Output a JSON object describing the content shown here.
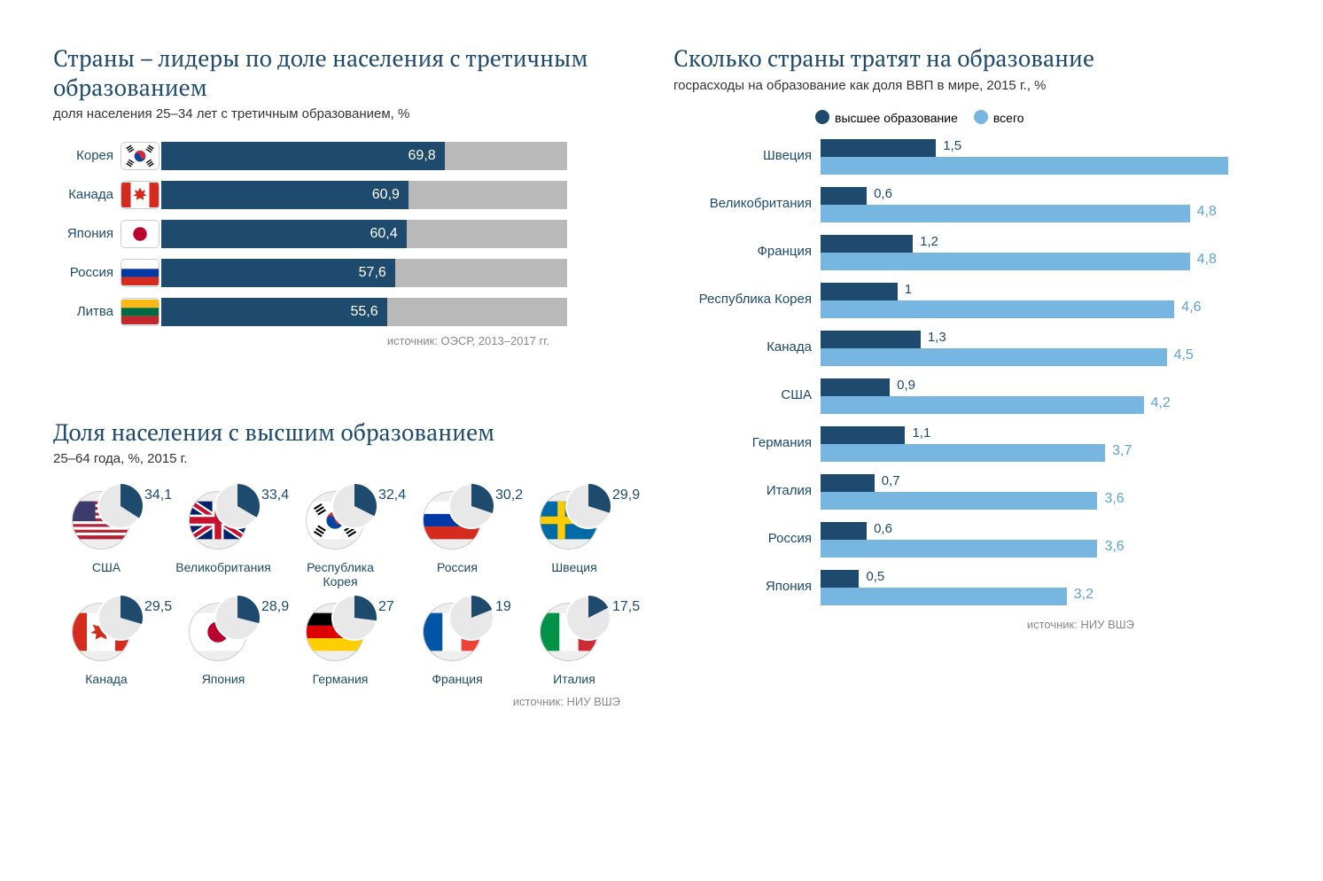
{
  "colors": {
    "title": "#1e4a6d",
    "bar_fill": "#1e4a6d",
    "bar_track": "#b9b9b9",
    "source": "#888888",
    "light_blue": "#76b6e0",
    "light_blue_text": "#5ba3d6"
  },
  "chart1": {
    "title": "Страны – лидеры по доле населения с третичным образованием",
    "subtitle": "доля населения 25–34 лет с третичным образованием, %",
    "max": 100,
    "rows": [
      {
        "label": "Корея",
        "flag": "kr",
        "value": 69.8,
        "disp": "69,8"
      },
      {
        "label": "Канада",
        "flag": "ca",
        "value": 60.9,
        "disp": "60,9"
      },
      {
        "label": "Япония",
        "flag": "jp",
        "value": 60.4,
        "disp": "60,4"
      },
      {
        "label": "Россия",
        "flag": "ru",
        "value": 57.6,
        "disp": "57,6"
      },
      {
        "label": "Литва",
        "flag": "lt",
        "value": 55.6,
        "disp": "55,6"
      }
    ],
    "source": "источник: ОЭСР, 2013–2017 гг."
  },
  "chart2": {
    "title": "Доля населения с высшим образованием",
    "subtitle": "25–64 года, %, 2015 г.",
    "items": [
      {
        "label": "США",
        "flag": "us",
        "value": 34.1,
        "disp": "34,1"
      },
      {
        "label": "Великобритания",
        "flag": "gb",
        "value": 33.4,
        "disp": "33,4"
      },
      {
        "label": "Республика\nКорея",
        "flag": "kr",
        "value": 32.4,
        "disp": "32,4"
      },
      {
        "label": "Россия",
        "flag": "ru",
        "value": 30.2,
        "disp": "30,2"
      },
      {
        "label": "Швеция",
        "flag": "se",
        "value": 29.9,
        "disp": "29,9"
      },
      {
        "label": "Канада",
        "flag": "ca",
        "value": 29.5,
        "disp": "29,5"
      },
      {
        "label": "Япония",
        "flag": "jp",
        "value": 28.9,
        "disp": "28,9"
      },
      {
        "label": "Германия",
        "flag": "de",
        "value": 27.0,
        "disp": "27"
      },
      {
        "label": "Франция",
        "flag": "fr",
        "value": 19.0,
        "disp": "19"
      },
      {
        "label": "Италия",
        "flag": "it",
        "value": 17.5,
        "disp": "17,5"
      }
    ],
    "source": "источник: НИУ ВШЭ"
  },
  "chart3": {
    "title": "Сколько страны тратят на образование",
    "subtitle": "госрасходы на образование как доля ВВП в мире, 2015 г., %",
    "legend_he": "высшее образование",
    "legend_total": "всего",
    "max": 5.3,
    "he_max": 5.3,
    "rows": [
      {
        "label": "Швеция",
        "he": 1.5,
        "he_disp": "1,5",
        "total": 5.3,
        "total_disp": ""
      },
      {
        "label": "Великобритания",
        "he": 0.6,
        "he_disp": "0,6",
        "total": 4.8,
        "total_disp": "4,8"
      },
      {
        "label": "Франция",
        "he": 1.2,
        "he_disp": "1,2",
        "total": 4.8,
        "total_disp": "4,8"
      },
      {
        "label": "Республика Корея",
        "he": 1.0,
        "he_disp": "1",
        "total": 4.6,
        "total_disp": "4,6"
      },
      {
        "label": "Канада",
        "he": 1.3,
        "he_disp": "1,3",
        "total": 4.5,
        "total_disp": "4,5"
      },
      {
        "label": "США",
        "he": 0.9,
        "he_disp": "0,9",
        "total": 4.2,
        "total_disp": "4,2"
      },
      {
        "label": "Германия",
        "he": 1.1,
        "he_disp": "1,1",
        "total": 3.7,
        "total_disp": "3,7"
      },
      {
        "label": "Италия",
        "he": 0.7,
        "he_disp": "0,7",
        "total": 3.6,
        "total_disp": "3,6"
      },
      {
        "label": "Россия",
        "he": 0.6,
        "he_disp": "0,6",
        "total": 3.6,
        "total_disp": "3,6"
      },
      {
        "label": "Япония",
        "he": 0.5,
        "he_disp": "0,5",
        "total": 3.2,
        "total_disp": "3,2"
      }
    ],
    "source": "источник: НИУ ВШЭ"
  }
}
